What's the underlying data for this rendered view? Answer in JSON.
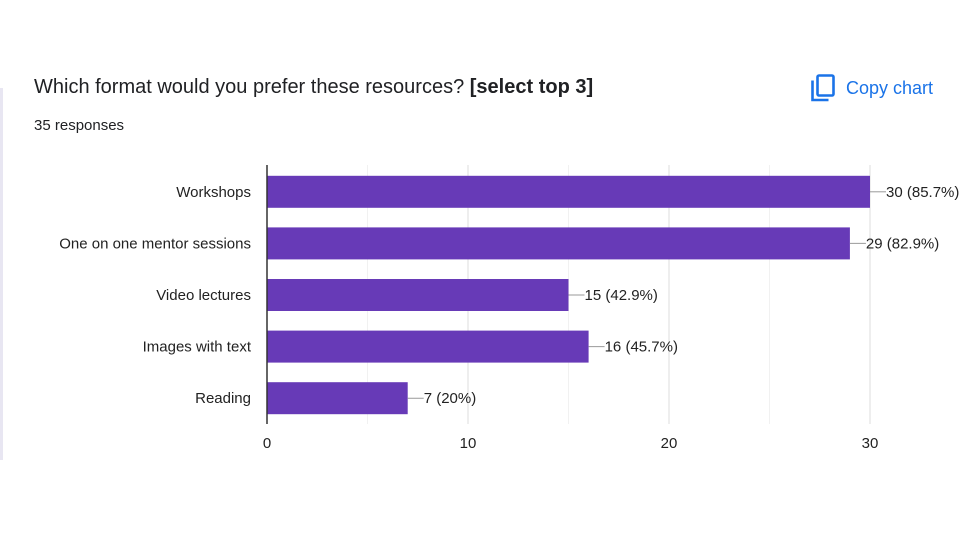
{
  "header": {
    "title_prefix": "Which format would you prefer these resources? ",
    "title_emphasis": "[select top 3]",
    "responses": "35 responses",
    "copy_label": "Copy chart"
  },
  "colors": {
    "bar": "#673ab7",
    "accent": "#1a73e8",
    "grid": "#ebebeb",
    "axis": "#333333"
  },
  "icons": {
    "copy": "copy-icon"
  },
  "chart_data": {
    "type": "bar",
    "orientation": "horizontal",
    "categories": [
      "Workshops",
      "One on one mentor sessions",
      "Video lectures",
      "Images with text",
      "Reading"
    ],
    "values": [
      30,
      29,
      15,
      16,
      7
    ],
    "data_labels": [
      "30 (85.7%)",
      "29 (82.9%)",
      "15 (42.9%)",
      "16 (45.7%)",
      "7 (20%)"
    ],
    "xlim": [
      0,
      30
    ],
    "xticks": [
      0,
      10,
      20,
      30
    ],
    "grid": true,
    "legend": "none"
  }
}
